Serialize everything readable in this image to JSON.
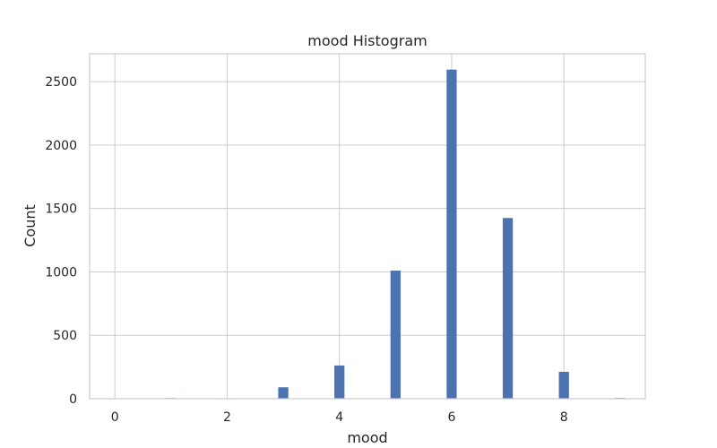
{
  "chart_data": {
    "type": "bar",
    "title": "mood Histogram",
    "xlabel": "mood",
    "ylabel": "Count",
    "xlim": [
      -0.45,
      9.45
    ],
    "ylim": [
      0,
      2720
    ],
    "xticks": [
      0,
      2,
      4,
      6,
      8
    ],
    "yticks": [
      0,
      500,
      1000,
      1500,
      2000,
      2500
    ],
    "grid": true,
    "bin_width": 0.18,
    "x": [
      0,
      1,
      2,
      3,
      4,
      5,
      6,
      7,
      8,
      9
    ],
    "values": [
      3,
      5,
      4,
      90,
      262,
      1010,
      2595,
      1425,
      212,
      6
    ],
    "bar_color": "#4c72b0",
    "grid_color": "#cccccc",
    "text_color": "#262626"
  }
}
